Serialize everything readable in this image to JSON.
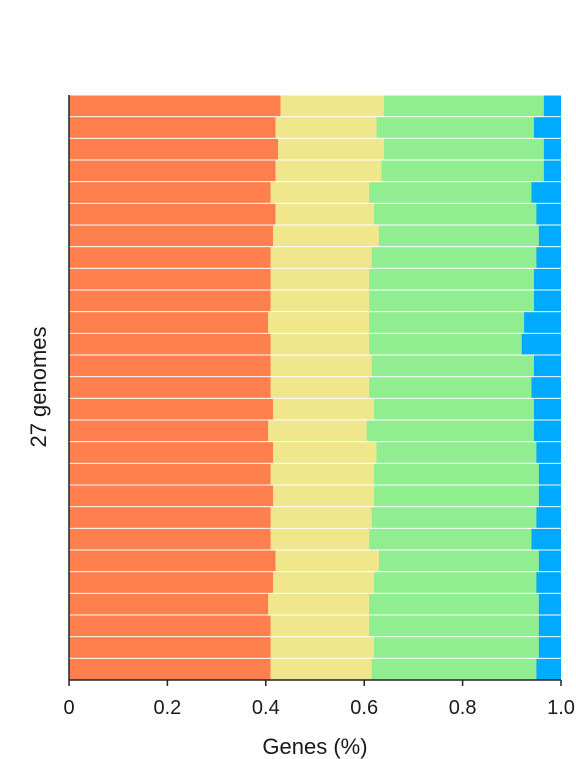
{
  "chart_data": {
    "type": "bar",
    "orientation": "horizontal",
    "stacked": true,
    "xlabel": "Genes (%)",
    "ylabel": "27 genomes",
    "xlim": [
      0,
      1.0
    ],
    "xticks": [
      "0",
      "0.2",
      "0.4",
      "0.6",
      "0.8",
      "1.0"
    ],
    "grid": false,
    "legend": "none",
    "colors": [
      "#FF7F4E",
      "#F0E68C",
      "#90EE90",
      "#00AAFF"
    ],
    "category_count": 27,
    "series": [
      {
        "values": [
          0.43,
          0.42,
          0.425,
          0.42,
          0.41,
          0.42,
          0.415,
          0.41,
          0.41,
          0.41,
          0.405,
          0.41,
          0.41,
          0.41,
          0.415,
          0.405,
          0.415,
          0.41,
          0.415,
          0.41,
          0.41,
          0.42,
          0.415,
          0.405,
          0.41,
          0.41,
          0.41
        ]
      },
      {
        "values": [
          0.21,
          0.205,
          0.215,
          0.215,
          0.2,
          0.2,
          0.215,
          0.205,
          0.2,
          0.2,
          0.205,
          0.2,
          0.205,
          0.2,
          0.205,
          0.2,
          0.21,
          0.21,
          0.205,
          0.205,
          0.2,
          0.21,
          0.205,
          0.205,
          0.2,
          0.21,
          0.205
        ]
      },
      {
        "values": [
          0.325,
          0.32,
          0.325,
          0.33,
          0.33,
          0.33,
          0.325,
          0.335,
          0.335,
          0.335,
          0.315,
          0.31,
          0.33,
          0.33,
          0.325,
          0.34,
          0.325,
          0.335,
          0.335,
          0.335,
          0.33,
          0.325,
          0.33,
          0.345,
          0.345,
          0.335,
          0.335
        ]
      },
      {
        "values": [
          0.035,
          0.055,
          0.035,
          0.035,
          0.06,
          0.05,
          0.045,
          0.05,
          0.055,
          0.055,
          0.075,
          0.08,
          0.055,
          0.06,
          0.055,
          0.055,
          0.05,
          0.045,
          0.045,
          0.05,
          0.06,
          0.045,
          0.05,
          0.045,
          0.045,
          0.045,
          0.05
        ]
      }
    ]
  }
}
